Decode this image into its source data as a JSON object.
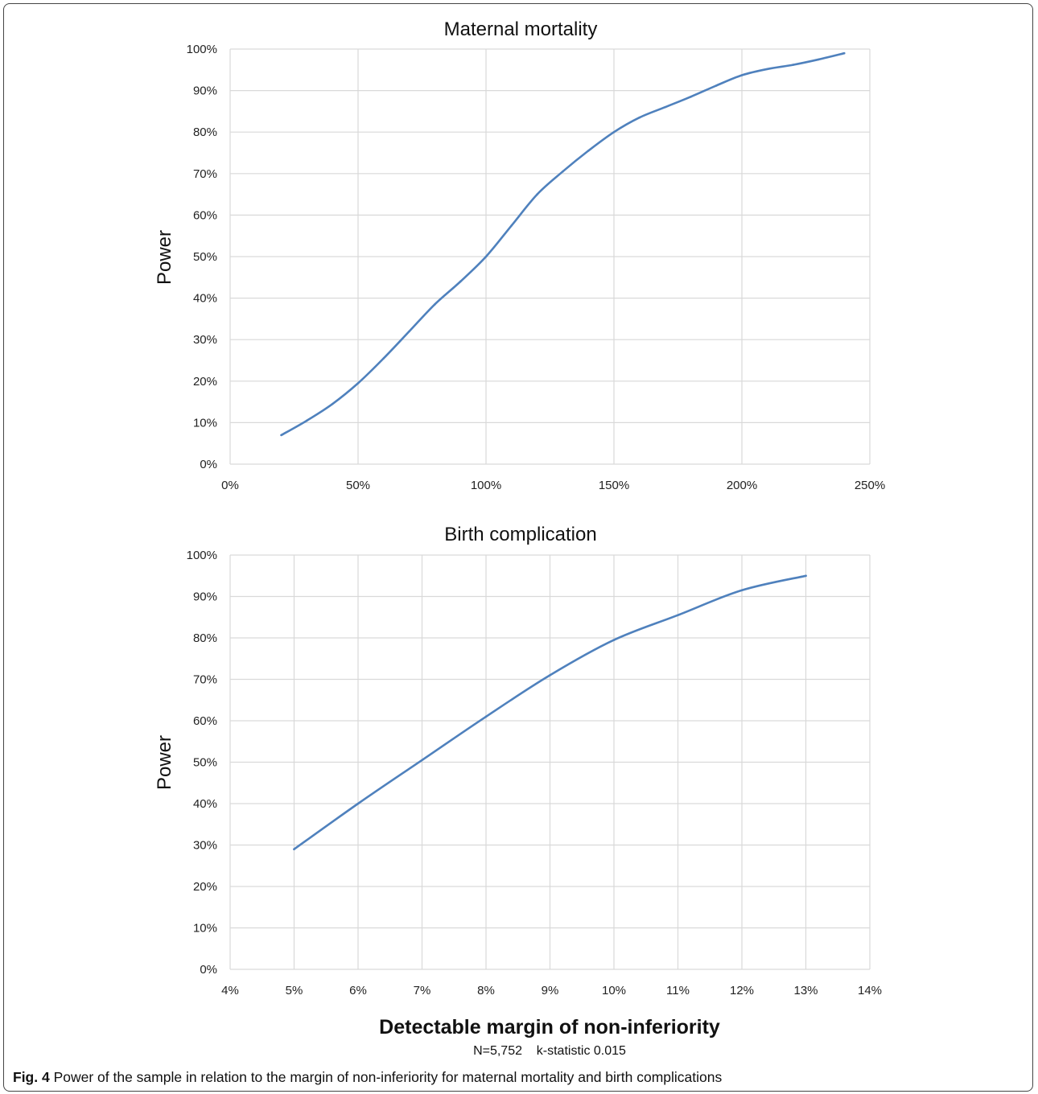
{
  "chart_data": [
    {
      "type": "line",
      "title": "Maternal mortality",
      "ylabel": "Power",
      "xlabel": "",
      "xlim": [
        0,
        250
      ],
      "ylim": [
        0,
        100
      ],
      "x_ticks": [
        "0%",
        "50%",
        "100%",
        "150%",
        "200%",
        "250%"
      ],
      "y_ticks": [
        "0%",
        "10%",
        "20%",
        "30%",
        "40%",
        "50%",
        "60%",
        "70%",
        "80%",
        "90%",
        "100%"
      ],
      "grid": true,
      "color": "#4f81bd",
      "series": [
        {
          "x": [
            20,
            30,
            40,
            50,
            60,
            70,
            80,
            90,
            100,
            110,
            120,
            130,
            140,
            150,
            160,
            170,
            180,
            190,
            200,
            210,
            220,
            230,
            240
          ],
          "values": [
            7,
            10.5,
            14.5,
            19.5,
            25.5,
            32,
            38.5,
            44,
            50,
            57.5,
            65,
            70.5,
            75.5,
            80,
            83.5,
            86,
            88.5,
            91.2,
            93.7,
            95.2,
            96.2,
            97.5,
            99
          ]
        }
      ]
    },
    {
      "type": "line",
      "title": "Birth complication",
      "ylabel": "Power",
      "xlabel": "Detectable margin of non-inferiority",
      "xlim": [
        4,
        14
      ],
      "ylim": [
        0,
        100
      ],
      "x_ticks": [
        "4%",
        "5%",
        "6%",
        "7%",
        "8%",
        "9%",
        "10%",
        "11%",
        "12%",
        "13%",
        "14%"
      ],
      "y_ticks": [
        "0%",
        "10%",
        "20%",
        "30%",
        "40%",
        "50%",
        "60%",
        "70%",
        "80%",
        "90%",
        "100%"
      ],
      "grid": true,
      "color": "#4f81bd",
      "series": [
        {
          "x": [
            5,
            6,
            7,
            8,
            9,
            10,
            11,
            12,
            13
          ],
          "values": [
            29,
            40,
            50.5,
            61,
            71,
            79.5,
            85.5,
            91.5,
            95
          ]
        }
      ]
    }
  ],
  "note": "N=5,752    k-statistic 0.015",
  "caption": {
    "label": "Fig. 4",
    "text": " Power of the sample in relation to the margin of non-inferiority for maternal mortality and birth complications"
  }
}
